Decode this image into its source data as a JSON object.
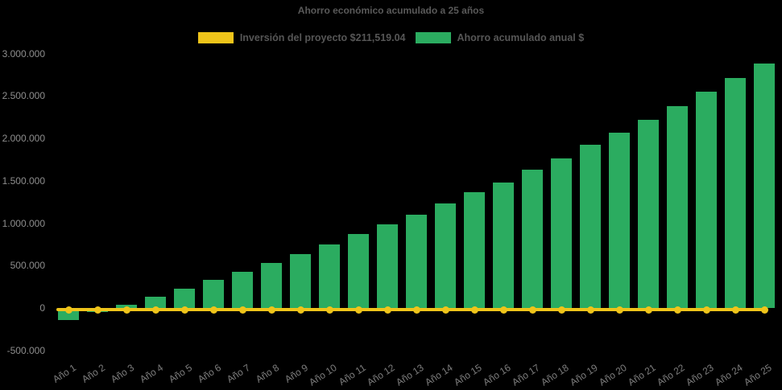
{
  "title": "Ahorro económico acumulado a 25 años",
  "legend": [
    {
      "id": "inversion-del-proyecto",
      "label": "Inversión del proyecto $211,519.04",
      "color": "#efc41a",
      "marker": "line-swatch"
    },
    {
      "id": "ahorro-acumulado-anual",
      "label": "Ahorro acumulado anual $",
      "color": "#2bac60",
      "marker": "bar-swatch"
    }
  ],
  "colors": {
    "background": "#000000",
    "bar_green": "#2bac60",
    "line_yellow": "#efc41a",
    "title_text": "#595959",
    "axis_text": "#8e8e8e"
  },
  "chart_data": {
    "type": "bar",
    "title": "Ahorro económico acumulado a 25 años",
    "categories": [
      "Año 1",
      "Año 2",
      "Año 3",
      "Año 4",
      "Año 5",
      "Año 6",
      "Año 7",
      "Año 8",
      "Año 9",
      "Año 10",
      "Año 11",
      "Año 12",
      "Año 13",
      "Año 14",
      "Año 15",
      "Año 16",
      "Año 17",
      "Año 18",
      "Año 19",
      "Año 20",
      "Año 21",
      "Año 22",
      "Año 23",
      "Año 24",
      "Año 25"
    ],
    "series": [
      {
        "name": "Ahorro acumulado anual $",
        "type": "bar",
        "color": "#2bac60",
        "values": [
          -140000,
          -50000,
          40000,
          132000,
          228000,
          328000,
          425000,
          533000,
          634000,
          745000,
          873000,
          985000,
          1101000,
          1235000,
          1368000,
          1483000,
          1629000,
          1764000,
          1922000,
          2071000,
          2222000,
          2383000,
          2554000,
          2711000,
          2885000
        ]
      },
      {
        "name": "Inversión del proyecto $211,519.04",
        "type": "line",
        "color": "#efc41a",
        "amount_in_label": 211519.04,
        "plotted_level": 0,
        "marker": "circle"
      }
    ],
    "y_ticks": [
      {
        "value": 3000000,
        "label": "3.000.000"
      },
      {
        "value": 2500000,
        "label": "2.500.000"
      },
      {
        "value": 2000000,
        "label": "2.000.000"
      },
      {
        "value": 1500000,
        "label": "1.500.000"
      },
      {
        "value": 1000000,
        "label": "1.000.000"
      },
      {
        "value": 500000,
        "label": "500.000"
      },
      {
        "value": 0,
        "label": "0"
      },
      {
        "value": -500000,
        "label": "-500.000"
      }
    ],
    "ylim": [
      -500000,
      3000000
    ],
    "grid": false,
    "legend_position": "top",
    "x_labels_rotated": true
  }
}
